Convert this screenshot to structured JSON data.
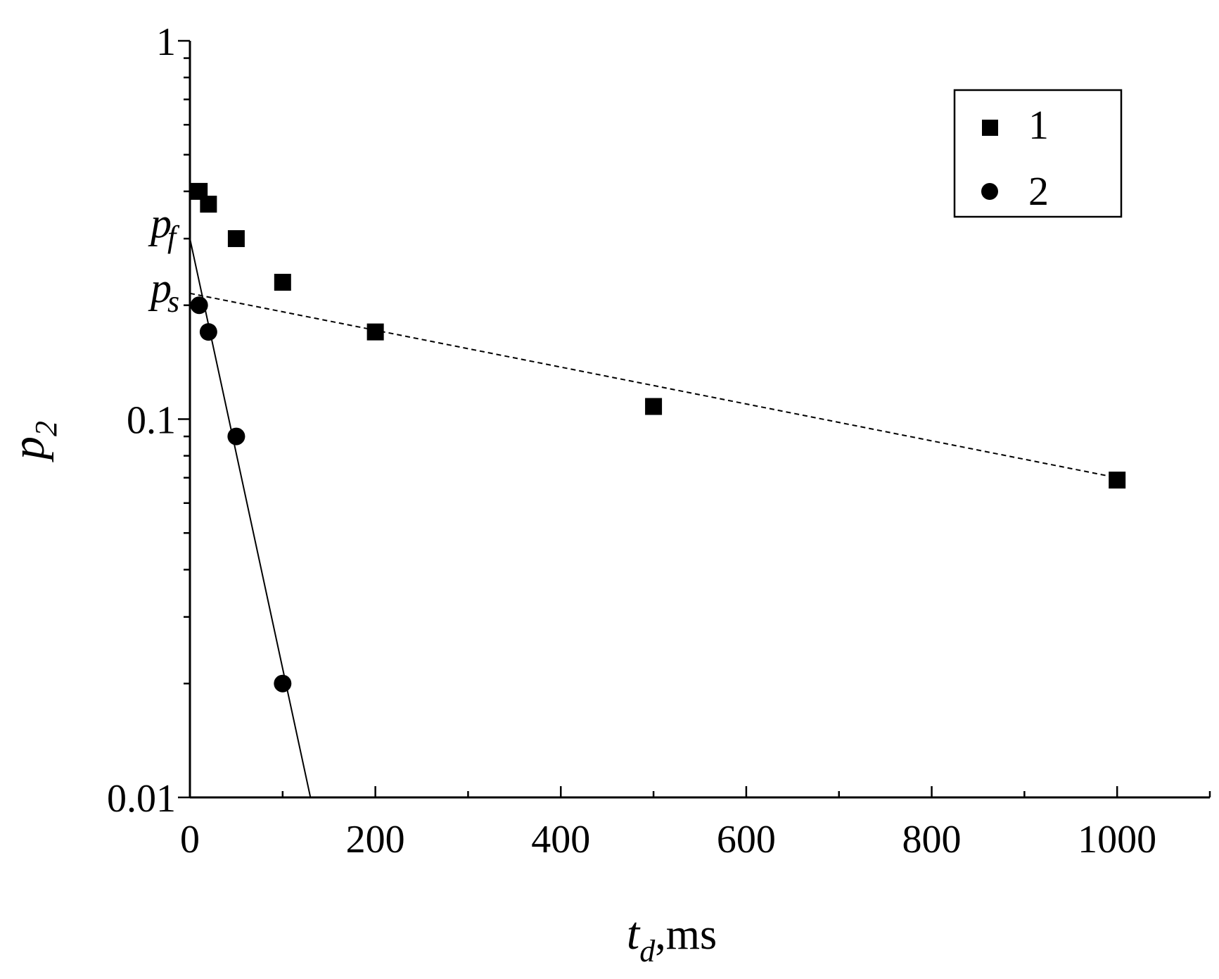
{
  "chart_data": {
    "type": "scatter",
    "x_axis": {
      "label_main": "t",
      "label_sub": "d",
      "label_unit": ",ms",
      "range": [
        0,
        1100
      ],
      "ticks": [
        0,
        200,
        400,
        600,
        800,
        1000
      ],
      "tick_labels": [
        "0",
        "200",
        "400",
        "600",
        "800",
        "1000"
      ],
      "minor_step": 100
    },
    "y_axis": {
      "label_main": "p",
      "label_sub": "2",
      "scale": "log",
      "range": [
        0.01,
        1
      ],
      "ticks": [
        0.01,
        0.1,
        1
      ],
      "tick_labels": [
        "0.01",
        "0.1",
        "1"
      ]
    },
    "series": [
      {
        "name": "1",
        "marker": "square",
        "x": [
          10,
          20,
          50,
          100,
          200,
          500,
          1000
        ],
        "y": [
          0.4,
          0.37,
          0.3,
          0.23,
          0.17,
          0.108,
          0.069
        ]
      },
      {
        "name": "2",
        "marker": "circle",
        "x": [
          10,
          20,
          50,
          100
        ],
        "y": [
          0.2,
          0.17,
          0.09,
          0.02
        ]
      }
    ],
    "fit_lines": [
      {
        "style": "dashed",
        "x": [
          0,
          1000
        ],
        "y": [
          0.215,
          0.07
        ]
      },
      {
        "style": "solid",
        "x": [
          0,
          130
        ],
        "y": [
          0.3,
          0.01
        ]
      }
    ],
    "annotations": [
      {
        "main": "p",
        "sub": "f",
        "x": 0,
        "y": 0.3
      },
      {
        "main": "p",
        "sub": "s",
        "x": 0,
        "y": 0.215
      }
    ],
    "legend": {
      "placement": "top-right",
      "entries": [
        "1",
        "2"
      ]
    },
    "grid": false
  }
}
